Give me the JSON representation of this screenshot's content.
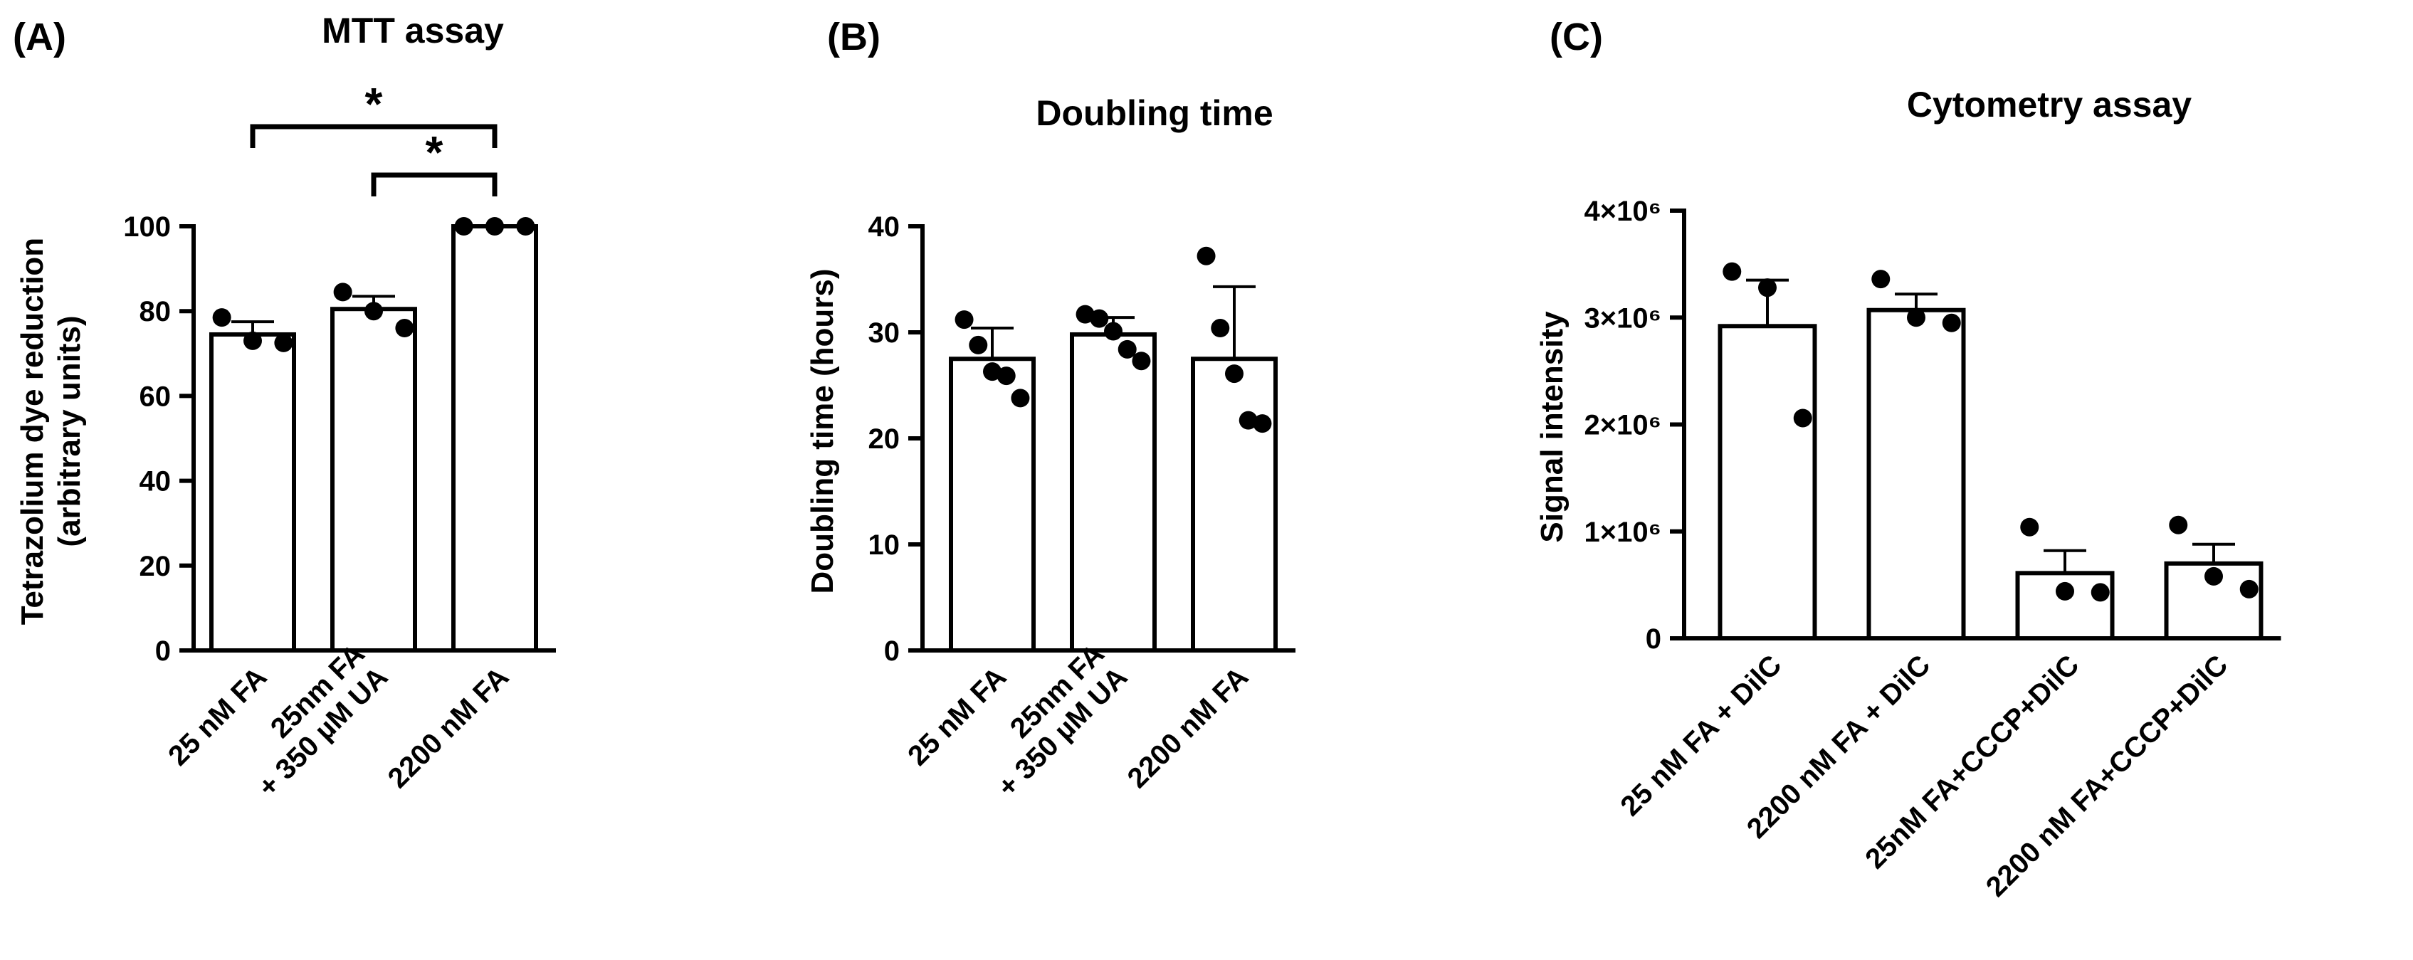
{
  "chart_data": [
    {
      "type": "bar",
      "panel_label": "(A)",
      "title": "MTT assay",
      "ylabel_lines": [
        "Tetrazolium dye reduction",
        "(arbitrary units)"
      ],
      "yticks": [
        "0",
        "20",
        "40",
        "60",
        "80",
        "100"
      ],
      "ylim": [
        0,
        100
      ],
      "categories": [
        {
          "lines": [
            "25 nM FA"
          ]
        },
        {
          "lines": [
            "25nm FA",
            "+ 350 µM UA"
          ]
        },
        {
          "lines": [
            "2200 nM FA"
          ]
        }
      ],
      "values": [
        74.5,
        80.5,
        100
      ],
      "errors": [
        3,
        3,
        0
      ],
      "points": [
        [
          78.5,
          73,
          72.5
        ],
        [
          84.5,
          80,
          76
        ],
        [
          100,
          100,
          100
        ]
      ],
      "significance": [
        {
          "from": 0,
          "to": 2,
          "label": "*"
        },
        {
          "from": 1,
          "to": 2,
          "label": "*"
        }
      ]
    },
    {
      "type": "bar",
      "panel_label": "(B)",
      "title": "Doubling time",
      "ylabel_lines": [
        "Doubling time (hours)"
      ],
      "yticks": [
        "0",
        "10",
        "20",
        "30",
        "40"
      ],
      "ylim": [
        0,
        40
      ],
      "categories": [
        {
          "lines": [
            "25 nM FA"
          ]
        },
        {
          "lines": [
            "25nm FA",
            "+ 350 µM UA"
          ]
        },
        {
          "lines": [
            "2200 nM FA"
          ]
        }
      ],
      "values": [
        27.5,
        29.8,
        27.5
      ],
      "errors": [
        2.9,
        1.6,
        6.8
      ],
      "points": [
        [
          31.2,
          28.8,
          26.3,
          25.9,
          23.8
        ],
        [
          31.7,
          31.3,
          30.1,
          28.4,
          27.3
        ],
        [
          37.2,
          30.4,
          26.1,
          21.7,
          21.4
        ]
      ],
      "significance": []
    },
    {
      "type": "bar",
      "panel_label": "(C)",
      "title": "Cytometry assay",
      "ylabel_lines": [
        "Signal intensity"
      ],
      "yticks": [
        "0",
        "1×10⁶",
        "2×10⁶",
        "3×10⁶",
        "4×10⁶"
      ],
      "ylim": [
        0,
        4000000
      ],
      "categories": [
        {
          "lines": [
            "25 nM FA + DilC"
          ]
        },
        {
          "lines": [
            "2200 nM FA + DilC"
          ]
        },
        {
          "lines": [
            "25nM FA+CCCP+DilC"
          ]
        },
        {
          "lines": [
            "2200 nM FA+CCCP+DilC"
          ]
        }
      ],
      "values": [
        2920000,
        3070000,
        610000,
        700000
      ],
      "errors": [
        430000,
        150000,
        210000,
        180000
      ],
      "points": [
        [
          3430000,
          3280000,
          2060000
        ],
        [
          3360000,
          3000000,
          2950000
        ],
        [
          1040000,
          440000,
          430000
        ],
        [
          1060000,
          580000,
          460000
        ]
      ],
      "significance": []
    }
  ]
}
